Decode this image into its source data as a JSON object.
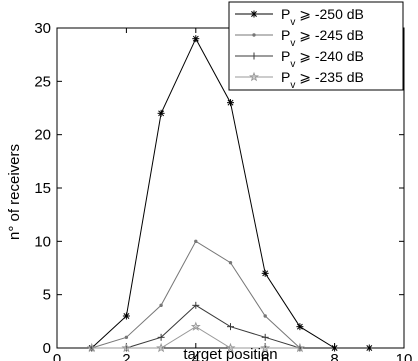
{
  "chart_data": {
    "type": "line",
    "title": "",
    "xlabel": "target position",
    "ylabel": "n° of receivers",
    "xlim": [
      0,
      10
    ],
    "ylim": [
      0,
      30
    ],
    "xticks": [
      0,
      2,
      4,
      6,
      8,
      10
    ],
    "yticks": [
      0,
      5,
      10,
      15,
      20,
      25,
      30
    ],
    "grid": false,
    "legend_position": "top-right",
    "series": [
      {
        "name": "P",
        "name_sub": "v",
        "name_rest": " ⩾ -250 dB",
        "marker": "asterisk",
        "color": "#000000",
        "x": [
          1,
          2,
          3,
          4,
          5,
          6,
          7,
          8,
          9
        ],
        "y": [
          0,
          3,
          22,
          29,
          23,
          7,
          2,
          0,
          0
        ]
      },
      {
        "name": "P",
        "name_sub": "v",
        "name_rest": " ⩾ -245 dB",
        "marker": "dot",
        "color": "#777777",
        "x": [
          1,
          2,
          3,
          4,
          5,
          6,
          7
        ],
        "y": [
          0,
          1,
          4,
          10,
          8,
          3,
          0
        ]
      },
      {
        "name": "P",
        "name_sub": "v",
        "name_rest": " ⩾ -240 dB",
        "marker": "plus",
        "color": "#3a3a3a",
        "x": [
          1,
          2,
          3,
          4,
          5,
          6,
          7
        ],
        "y": [
          0,
          0,
          1,
          4,
          2,
          1,
          0
        ]
      },
      {
        "name": "P",
        "name_sub": "v",
        "name_rest": " ⩾ -235 dB",
        "marker": "star",
        "color": "#999999",
        "x": [
          1,
          2,
          3,
          4,
          5,
          6,
          7
        ],
        "y": [
          0,
          0,
          0,
          2,
          0,
          0,
          0
        ]
      }
    ]
  }
}
